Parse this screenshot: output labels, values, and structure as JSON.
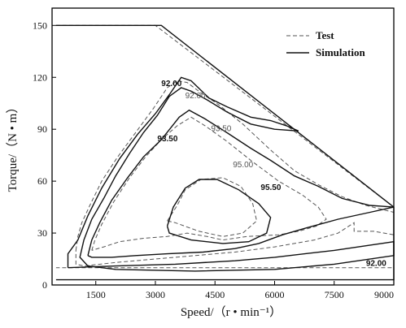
{
  "chart_data": {
    "type": "line",
    "title": "",
    "xlabel": "Speed/（r • min⁻¹）",
    "ylabel": "Torque/（N • m）",
    "xlim": [
      400,
      9000
    ],
    "ylim": [
      0,
      160
    ],
    "xticks": [
      1500,
      3000,
      4500,
      6000,
      7500,
      9000
    ],
    "yticks": [
      0,
      30,
      60,
      90,
      120,
      150
    ],
    "grid": false,
    "legend": {
      "position": "top-right",
      "entries": [
        {
          "label": "Test",
          "style": "dashed"
        },
        {
          "label": "Simulation",
          "style": "solid"
        }
      ]
    },
    "series": [
      {
        "name": "Test",
        "style": "dashed",
        "contours": [
          {
            "level": "envelope",
            "points": [
              [
                500,
                150
              ],
              [
                3000,
                150
              ],
              [
                9000,
                45
              ],
              [
                9000,
                10
              ],
              [
                500,
                10
              ]
            ]
          },
          {
            "level": "92.00",
            "label": "92.00",
            "points": [
              [
                1000,
                20
              ],
              [
                1050,
                28
              ],
              [
                1150,
                36
              ],
              [
                1350,
                46
              ],
              [
                1650,
                60
              ],
              [
                2050,
                74
              ],
              [
                2500,
                88
              ],
              [
                2950,
                102
              ],
              [
                3300,
                114
              ],
              [
                3550,
                118
              ],
              [
                3800,
                117
              ],
              [
                4150,
                111
              ],
              [
                4600,
                104
              ],
              [
                5200,
                93
              ],
              [
                5900,
                78
              ],
              [
                6500,
                66
              ],
              [
                7100,
                58
              ],
              [
                7700,
                51
              ],
              [
                8300,
                46
              ],
              [
                9000,
                42
              ],
              [
                9000,
                29
              ],
              [
                8500,
                31
              ],
              [
                8000,
                31
              ],
              [
                8000,
                36
              ],
              [
                7600,
                30
              ],
              [
                7000,
                26
              ],
              [
                6000,
                22
              ],
              [
                5000,
                19
              ],
              [
                4000,
                17
              ],
              [
                3000,
                15
              ],
              [
                2000,
                13
              ],
              [
                1200,
                11
              ],
              [
                1000,
                12
              ],
              [
                1000,
                20
              ]
            ]
          },
          {
            "level": "93.50",
            "label": "93.50",
            "points": [
              [
                1400,
                20
              ],
              [
                1480,
                26
              ],
              [
                1650,
                35
              ],
              [
                1950,
                48
              ],
              [
                2350,
                62
              ],
              [
                2750,
                74
              ],
              [
                3150,
                84
              ],
              [
                3550,
                92
              ],
              [
                3900,
                97
              ],
              [
                4250,
                92
              ],
              [
                4800,
                83
              ],
              [
                5400,
                72
              ],
              [
                6100,
                60
              ],
              [
                6700,
                52
              ],
              [
                7100,
                45
              ],
              [
                7300,
                38
              ],
              [
                7050,
                34
              ],
              [
                6600,
                31
              ],
              [
                6100,
                29
              ],
              [
                5300,
                28
              ],
              [
                4700,
                26
              ],
              [
                4300,
                28
              ],
              [
                3800,
                30
              ],
              [
                3300,
                28
              ],
              [
                2700,
                27
              ],
              [
                2100,
                25
              ],
              [
                1700,
                22
              ],
              [
                1400,
                20
              ]
            ]
          },
          {
            "level": "95.00",
            "label": "95.00",
            "points": [
              [
                3300,
                37
              ],
              [
                3550,
                46
              ],
              [
                3750,
                55
              ],
              [
                4150,
                61
              ],
              [
                4700,
                62
              ],
              [
                5150,
                57
              ],
              [
                5450,
                47
              ],
              [
                5550,
                37
              ],
              [
                5200,
                30
              ],
              [
                4700,
                28
              ],
              [
                4100,
                31
              ],
              [
                3500,
                36
              ],
              [
                3300,
                37
              ]
            ]
          }
        ]
      },
      {
        "name": "Simulation",
        "style": "solid",
        "contours": [
          {
            "level": "envelope",
            "points": [
              [
                500,
                150
              ],
              [
                3150,
                150
              ],
              [
                9000,
                45
              ],
              [
                9000,
                3
              ],
              [
                500,
                3
              ]
            ]
          },
          {
            "level": "92.00",
            "label": "92.00",
            "points": [
              [
                800,
                10
              ],
              [
                800,
                18
              ],
              [
                1050,
                26
              ],
              [
                1300,
                40
              ],
              [
                1650,
                56
              ],
              [
                2100,
                73
              ],
              [
                2550,
                87
              ],
              [
                3000,
                99
              ],
              [
                3350,
                110
              ],
              [
                3650,
                120
              ],
              [
                3900,
                118
              ],
              [
                4350,
                108
              ],
              [
                4800,
                103
              ],
              [
                5400,
                97
              ],
              [
                5900,
                95
              ],
              [
                6300,
                92
              ],
              [
                6600,
                89
              ],
              [
                6000,
                90
              ],
              [
                5400,
                93
              ],
              [
                4800,
                100
              ],
              [
                4300,
                107
              ],
              [
                3900,
                112
              ],
              [
                3650,
                114
              ],
              [
                3350,
                109
              ],
              [
                3050,
                98
              ],
              [
                2700,
                88
              ],
              [
                2350,
                76
              ],
              [
                2000,
                63
              ],
              [
                1700,
                50
              ],
              [
                1400,
                38
              ],
              [
                1200,
                26
              ],
              [
                1100,
                16
              ],
              [
                1300,
                11
              ],
              [
                2000,
                9
              ],
              [
                4000,
                8
              ],
              [
                6000,
                9
              ],
              [
                7500,
                12
              ],
              [
                9000,
                17
              ],
              [
                9000,
                25
              ],
              [
                7500,
                20
              ],
              [
                6000,
                16
              ],
              [
                5000,
                14
              ],
              [
                3500,
                12
              ],
              [
                2000,
                11
              ],
              [
                800,
                10
              ]
            ]
          },
          {
            "level": "93.50",
            "label": "93.50",
            "points": [
              [
                1300,
                17
              ],
              [
                1400,
                26
              ],
              [
                1600,
                36
              ],
              [
                1900,
                49
              ],
              [
                2300,
                62
              ],
              [
                2700,
                74
              ],
              [
                3150,
                84
              ],
              [
                3600,
                97
              ],
              [
                3850,
                101
              ],
              [
                4250,
                96
              ],
              [
                4800,
                88
              ],
              [
                5400,
                79
              ],
              [
                5900,
                72
              ],
              [
                6500,
                63
              ],
              [
                7100,
                57
              ],
              [
                7700,
                50
              ],
              [
                8400,
                46
              ],
              [
                9000,
                45
              ],
              [
                8400,
                42
              ],
              [
                7600,
                38
              ],
              [
                6800,
                33
              ],
              [
                6200,
                29
              ],
              [
                5600,
                24
              ],
              [
                5000,
                21
              ],
              [
                4200,
                19
              ],
              [
                3300,
                18
              ],
              [
                2500,
                17
              ],
              [
                1900,
                16
              ],
              [
                1400,
                16
              ],
              [
                1300,
                17
              ]
            ]
          },
          {
            "level": "95.50",
            "label": "95.50",
            "points": [
              [
                3300,
                34
              ],
              [
                3450,
                45
              ],
              [
                3750,
                56
              ],
              [
                4100,
                61
              ],
              [
                4550,
                61
              ],
              [
                5100,
                55
              ],
              [
                5600,
                47
              ],
              [
                5900,
                39
              ],
              [
                5800,
                30
              ],
              [
                5350,
                25
              ],
              [
                4700,
                24
              ],
              [
                3900,
                26
              ],
              [
                3350,
                30
              ],
              [
                3300,
                34
              ]
            ]
          }
        ]
      }
    ],
    "annotations": [
      {
        "text": "92.00",
        "series": "Simulation",
        "x": 3150,
        "y": 115
      },
      {
        "text": "92.00",
        "series": "Test",
        "x": 3750,
        "y": 108
      },
      {
        "text": "93.50",
        "series": "Simulation",
        "x": 3050,
        "y": 83
      },
      {
        "text": "93.50",
        "series": "Test",
        "x": 4400,
        "y": 89
      },
      {
        "text": "95.00",
        "series": "Test",
        "x": 4950,
        "y": 68
      },
      {
        "text": "95.50",
        "series": "Simulation",
        "x": 5650,
        "y": 55
      },
      {
        "text": "92.00",
        "series": "Simulation",
        "x": 8300,
        "y": 11
      }
    ]
  }
}
